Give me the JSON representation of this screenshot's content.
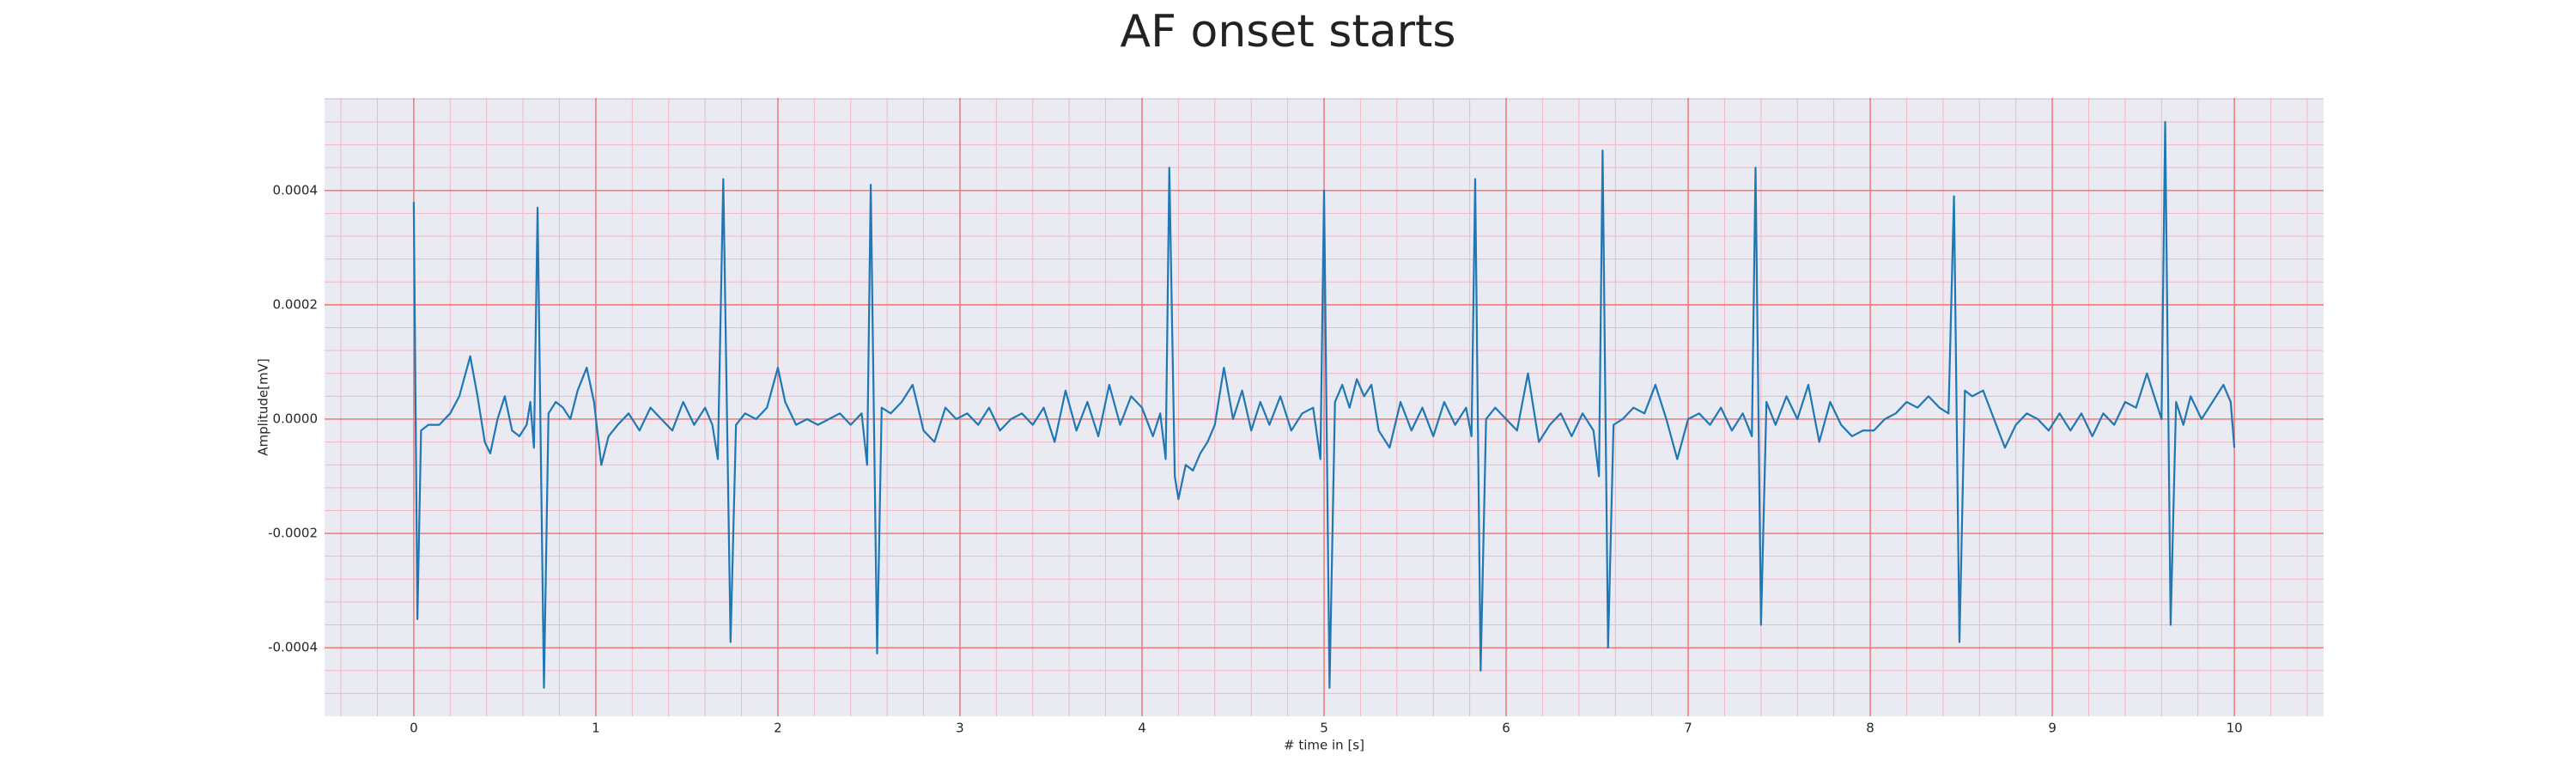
{
  "chart_data": {
    "type": "line",
    "title": "AF onset starts",
    "xlabel": "# time in [s]",
    "ylabel": "Amplitude[mV]",
    "color": "#1f77b4",
    "grid": true,
    "minor_grid": true,
    "xlim": [
      -0.49,
      10.49
    ],
    "ylim": [
      -0.00052,
      0.000562
    ],
    "xticks": [
      0,
      1,
      2,
      3,
      4,
      5,
      6,
      7,
      8,
      9,
      10
    ],
    "yticks": [
      -0.0004,
      -0.0002,
      {
        "value": 0,
        "label": "0.0000"
      },
      0.0002,
      0.0004
    ],
    "x": [
      0,
      0.02,
      0.04,
      0.08,
      0.14,
      0.2,
      0.25,
      0.31,
      0.35,
      0.39,
      0.42,
      0.46,
      0.5,
      0.54,
      0.58,
      0.62,
      0.64,
      0.66,
      0.68,
      0.715,
      0.74,
      0.78,
      0.82,
      0.86,
      0.9,
      0.95,
      0.99,
      1.03,
      1.07,
      1.12,
      1.18,
      1.24,
      1.3,
      1.36,
      1.42,
      1.48,
      1.54,
      1.6,
      1.64,
      1.67,
      1.7,
      1.74,
      1.77,
      1.82,
      1.88,
      1.94,
      2.0,
      2.04,
      2.1,
      2.16,
      2.22,
      2.28,
      2.34,
      2.4,
      2.46,
      2.49,
      2.51,
      2.545,
      2.57,
      2.62,
      2.68,
      2.74,
      2.8,
      2.86,
      2.92,
      2.98,
      3.04,
      3.1,
      3.16,
      3.22,
      3.28,
      3.34,
      3.4,
      3.46,
      3.52,
      3.58,
      3.64,
      3.7,
      3.76,
      3.82,
      3.88,
      3.94,
      4.0,
      4.06,
      4.1,
      4.13,
      4.15,
      4.18,
      4.2,
      4.24,
      4.28,
      4.32,
      4.36,
      4.4,
      4.45,
      4.5,
      4.55,
      4.6,
      4.65,
      4.7,
      4.76,
      4.82,
      4.88,
      4.94,
      4.98,
      5.0,
      5.03,
      5.06,
      5.1,
      5.14,
      5.18,
      5.22,
      5.26,
      5.3,
      5.36,
      5.42,
      5.48,
      5.54,
      5.6,
      5.66,
      5.72,
      5.78,
      5.81,
      5.83,
      5.86,
      5.89,
      5.94,
      6.0,
      6.06,
      6.12,
      6.18,
      6.24,
      6.3,
      6.36,
      6.42,
      6.48,
      6.51,
      6.53,
      6.56,
      6.59,
      6.64,
      6.7,
      6.76,
      6.82,
      6.88,
      6.94,
      7.0,
      7.06,
      7.12,
      7.18,
      7.24,
      7.3,
      7.35,
      7.37,
      7.4,
      7.43,
      7.48,
      7.54,
      7.6,
      7.66,
      7.72,
      7.78,
      7.84,
      7.9,
      7.96,
      8.02,
      8.08,
      8.14,
      8.2,
      8.26,
      8.32,
      8.38,
      8.43,
      8.46,
      8.49,
      8.52,
      8.56,
      8.62,
      8.68,
      8.74,
      8.8,
      8.86,
      8.92,
      8.98,
      9.04,
      9.1,
      9.16,
      9.22,
      9.28,
      9.34,
      9.4,
      9.46,
      9.52,
      9.56,
      9.6,
      9.62,
      9.65,
      9.68,
      9.72,
      9.76,
      9.82,
      9.88,
      9.94,
      9.98,
      10.0
    ],
    "values": [
      0.00038,
      -0.00035,
      -2e-05,
      -1e-05,
      -1e-05,
      1e-05,
      4e-05,
      0.00011,
      4e-05,
      -4e-05,
      -6e-05,
      0,
      4e-05,
      -2e-05,
      -3e-05,
      -1e-05,
      3e-05,
      -5e-05,
      0.00037,
      -0.00047,
      1e-05,
      3e-05,
      2e-05,
      0,
      5e-05,
      9e-05,
      3e-05,
      -8e-05,
      -3e-05,
      -1e-05,
      1e-05,
      -2e-05,
      2e-05,
      0,
      -2e-05,
      3e-05,
      -1e-05,
      2e-05,
      -1e-05,
      -7e-05,
      0.00042,
      -0.00039,
      -1e-05,
      1e-05,
      0,
      2e-05,
      9e-05,
      3e-05,
      -1e-05,
      0,
      -1e-05,
      0,
      1e-05,
      -1e-05,
      1e-05,
      -8e-05,
      0.00041,
      -0.00041,
      2e-05,
      1e-05,
      3e-05,
      6e-05,
      -2e-05,
      -4e-05,
      2e-05,
      0,
      1e-05,
      -1e-05,
      2e-05,
      -2e-05,
      0,
      1e-05,
      -1e-05,
      2e-05,
      -4e-05,
      5e-05,
      -2e-05,
      3e-05,
      -3e-05,
      6e-05,
      -1e-05,
      4e-05,
      2e-05,
      -3e-05,
      1e-05,
      -7e-05,
      0.00044,
      -0.0001,
      -0.00014,
      -8e-05,
      -9e-05,
      -6e-05,
      -4e-05,
      -1e-05,
      9e-05,
      0,
      5e-05,
      -2e-05,
      3e-05,
      -1e-05,
      4e-05,
      -2e-05,
      1e-05,
      2e-05,
      -7e-05,
      0.0004,
      -0.00047,
      3e-05,
      6e-05,
      2e-05,
      7e-05,
      4e-05,
      6e-05,
      -2e-05,
      -5e-05,
      3e-05,
      -2e-05,
      2e-05,
      -3e-05,
      3e-05,
      -1e-05,
      2e-05,
      -3e-05,
      0.00042,
      -0.00044,
      0,
      2e-05,
      0,
      -2e-05,
      8e-05,
      -4e-05,
      -1e-05,
      1e-05,
      -3e-05,
      1e-05,
      -2e-05,
      -0.0001,
      0.00047,
      -0.0004,
      -1e-05,
      0,
      2e-05,
      1e-05,
      6e-05,
      0,
      -7e-05,
      0,
      1e-05,
      -1e-05,
      2e-05,
      -2e-05,
      1e-05,
      -3e-05,
      0.00044,
      -0.00036,
      3e-05,
      -1e-05,
      4e-05,
      0,
      6e-05,
      -4e-05,
      3e-05,
      -1e-05,
      -3e-05,
      -2e-05,
      -2e-05,
      0,
      1e-05,
      3e-05,
      2e-05,
      4e-05,
      2e-05,
      1e-05,
      0.00039,
      -0.00039,
      5e-05,
      4e-05,
      5e-05,
      0,
      -5e-05,
      -1e-05,
      1e-05,
      0,
      -2e-05,
      1e-05,
      -2e-05,
      1e-05,
      -3e-05,
      1e-05,
      -1e-05,
      3e-05,
      2e-05,
      8e-05,
      4e-05,
      0,
      0.00052,
      -0.00036,
      3e-05,
      -1e-05,
      4e-05,
      0,
      3e-05,
      6e-05,
      3e-05,
      -5e-05
    ]
  }
}
